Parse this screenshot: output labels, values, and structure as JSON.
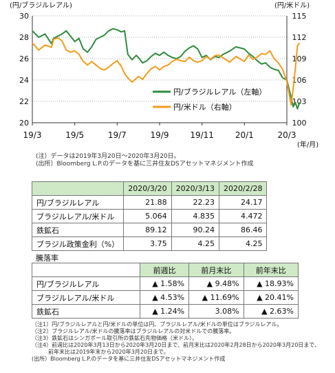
{
  "chart_data": {
    "type": "line",
    "left_axis_label": "(円/ブラジルレアル)",
    "right_axis_label": "(円/米ドル)",
    "x_unit_label": "(年/月)",
    "x_ticks": [
      "19/3",
      "19/5",
      "19/7",
      "19/9",
      "19/11",
      "20/1",
      "20/3"
    ],
    "y_left": {
      "min": 20,
      "max": 30,
      "ticks": [
        "20",
        "22",
        "24",
        "26",
        "28",
        "30"
      ]
    },
    "y_right": {
      "min": 100,
      "max": 115,
      "ticks": [
        "100",
        "103",
        "106",
        "109",
        "112",
        "115"
      ]
    },
    "grid": true,
    "legend_position": "right-center",
    "series": [
      {
        "name": "円/ブラジルレアル（左軸）",
        "axis": "left",
        "color": "#2e8b3e",
        "points": [
          [
            "19/3",
            28.6
          ],
          [
            "19/3.3",
            28.0
          ],
          [
            "19/3.6",
            28.3
          ],
          [
            "19/3.9",
            27.4
          ],
          [
            "19/4",
            27.9
          ],
          [
            "19/4.2",
            28.1
          ],
          [
            "19/4.4",
            28.3
          ],
          [
            "19/4.6",
            28.6
          ],
          [
            "19/4.8",
            28.1
          ],
          [
            "19/5",
            27.6
          ],
          [
            "19/5.2",
            27.9
          ],
          [
            "19/5.4",
            26.9
          ],
          [
            "19/5.6",
            26.6
          ],
          [
            "19/5.8",
            27.1
          ],
          [
            "19/6",
            27.8
          ],
          [
            "19/6.2",
            28.0
          ],
          [
            "19/6.4",
            28.2
          ],
          [
            "19/6.6",
            28.6
          ],
          [
            "19/6.8",
            28.8
          ],
          [
            "19/7",
            28.7
          ],
          [
            "19/7.2",
            28.5
          ],
          [
            "19/7.35",
            28.6
          ],
          [
            "19/7.5",
            26.4
          ],
          [
            "19/7.7",
            25.9
          ],
          [
            "19/7.9",
            26.3
          ],
          [
            "19/8",
            26.1
          ],
          [
            "19/8.2",
            25.6
          ],
          [
            "19/8.4",
            25.8
          ],
          [
            "19/8.6",
            26.2
          ],
          [
            "19/8.8",
            26.5
          ],
          [
            "19/9",
            26.3
          ],
          [
            "19/9.2",
            26.6
          ],
          [
            "19/9.4",
            26.3
          ],
          [
            "19/9.6",
            26.1
          ],
          [
            "19/9.8",
            26.0
          ],
          [
            "19/10",
            26.2
          ],
          [
            "19/10.2",
            26.7
          ],
          [
            "19/10.4",
            27.0
          ],
          [
            "19/10.6",
            27.2
          ],
          [
            "19/10.8",
            26.9
          ],
          [
            "19/11",
            26.1
          ],
          [
            "19/11.2",
            26.3
          ],
          [
            "19/11.4",
            25.9
          ],
          [
            "19/11.6",
            26.2
          ],
          [
            "19/11.8",
            26.1
          ],
          [
            "19/12",
            26.4
          ],
          [
            "19/12.3",
            26.7
          ],
          [
            "19/12.6",
            27.1
          ],
          [
            "20/1",
            26.9
          ],
          [
            "20/1.2",
            26.5
          ],
          [
            "20/1.4",
            26.2
          ],
          [
            "20/1.6",
            25.8
          ],
          [
            "20/1.8",
            25.5
          ],
          [
            "20/2",
            25.6
          ],
          [
            "20/2.2",
            25.2
          ],
          [
            "20/2.4",
            25.0
          ],
          [
            "20/2.6",
            24.9
          ],
          [
            "20/2.8",
            24.2
          ],
          [
            "20/3",
            24.0
          ],
          [
            "20/3.1",
            23.2
          ],
          [
            "20/3.2",
            22.4
          ],
          [
            "20/3.3",
            21.5
          ],
          [
            "20/3.4",
            21.9
          ],
          [
            "20/3.5",
            21.3
          ],
          [
            "20/3.6",
            21.9
          ]
        ]
      },
      {
        "name": "円/米ドル（右軸）",
        "axis": "right",
        "color": "#f39c1a",
        "points": [
          [
            "19/3",
            111.2
          ],
          [
            "19/3.3",
            110.2
          ],
          [
            "19/3.6",
            110.9
          ],
          [
            "19/3.9",
            110.6
          ],
          [
            "19/4",
            111.7
          ],
          [
            "19/4.2",
            111.9
          ],
          [
            "19/4.4",
            111.5
          ],
          [
            "19/4.6",
            110.2
          ],
          [
            "19/4.8",
            109.9
          ],
          [
            "19/5",
            110.1
          ],
          [
            "19/5.2",
            109.6
          ],
          [
            "19/5.4",
            108.6
          ],
          [
            "19/5.6",
            108.1
          ],
          [
            "19/5.8",
            108.6
          ],
          [
            "19/6",
            108.1
          ],
          [
            "19/6.2",
            107.6
          ],
          [
            "19/6.4",
            107.4
          ],
          [
            "19/6.6",
            107.8
          ],
          [
            "19/6.8",
            108.3
          ],
          [
            "19/7",
            108.7
          ],
          [
            "19/7.2",
            107.9
          ],
          [
            "19/7.35",
            106.9
          ],
          [
            "19/7.5",
            106.3
          ],
          [
            "19/7.7",
            105.7
          ],
          [
            "19/7.9",
            106.2
          ],
          [
            "19/8",
            106.5
          ],
          [
            "19/8.2",
            106.1
          ],
          [
            "19/8.4",
            106.9
          ],
          [
            "19/8.6",
            107.6
          ],
          [
            "19/8.8",
            107.9
          ],
          [
            "19/9",
            107.4
          ],
          [
            "19/9.2",
            107.9
          ],
          [
            "19/9.4",
            108.1
          ],
          [
            "19/9.6",
            108.6
          ],
          [
            "19/9.8",
            108.9
          ],
          [
            "19/10",
            108.7
          ],
          [
            "19/10.2",
            108.6
          ],
          [
            "19/10.4",
            109.2
          ],
          [
            "19/10.6",
            108.7
          ],
          [
            "19/10.8",
            108.5
          ],
          [
            "19/11",
            108.7
          ],
          [
            "19/11.2",
            109.3
          ],
          [
            "19/11.4",
            108.9
          ],
          [
            "19/11.6",
            109.4
          ],
          [
            "19/11.8",
            109.5
          ],
          [
            "19/12",
            109.1
          ],
          [
            "19/12.3",
            108.5
          ],
          [
            "19/12.6",
            109.3
          ],
          [
            "20/1",
            108.6
          ],
          [
            "20/1.2",
            109.5
          ],
          [
            "20/1.4",
            108.9
          ],
          [
            "20/1.6",
            109.2
          ],
          [
            "20/1.8",
            109.7
          ],
          [
            "20/2",
            109.6
          ],
          [
            "20/2.2",
            110.1
          ],
          [
            "20/2.4",
            109.0
          ],
          [
            "20/2.6",
            108.4
          ],
          [
            "20/2.8",
            107.5
          ],
          [
            "20/3",
            105.8
          ],
          [
            "20/3.1",
            104.2
          ],
          [
            "20/3.2",
            102.5
          ],
          [
            "20/3.3",
            104.9
          ],
          [
            "20/3.4",
            107.6
          ],
          [
            "20/3.5",
            110.8
          ],
          [
            "20/3.6",
            111.2
          ]
        ]
      }
    ]
  },
  "chart_notes": [
    "(注）データは2019年3月20日～2020年3月20日。",
    "(出所）Bloomberg L.P.のデータを基に三井住友DSアセットマネジメント作成"
  ],
  "table1": {
    "headers": [
      "",
      "2020/3/20",
      "2020/3/13",
      "2020/2/28"
    ],
    "rows": [
      [
        "円/ブラジルレアル",
        "21.88",
        "22.23",
        "24.17"
      ],
      [
        "ブラジルレアル/米ドル",
        "5.064",
        "4.835",
        "4.472"
      ],
      [
        "鉄鉱石",
        "89.12",
        "90.24",
        "86.46"
      ],
      [
        "ブラジル政策金利（%）",
        "3.75",
        "4.25",
        "4.25"
      ]
    ]
  },
  "table2_title": "騰落率",
  "table2": {
    "headers": [
      "",
      "前週比",
      "前月末比",
      "前年末比"
    ],
    "rows": [
      [
        "円/ブラジルレアル",
        "▲ 1.58%",
        "▲ 9.48%",
        "▲ 18.93%"
      ],
      [
        "ブラジルレアル/米ドル",
        "▲ 4.53%",
        "▲ 11.69%",
        "▲ 20.41%"
      ],
      [
        "鉄鉱石",
        "▲ 1.24%",
        "3.08%",
        "▲ 2.63%"
      ]
    ]
  },
  "bottom_notes": [
    "（注1）円/ブラジルレアルと円/米ドルの単位は円、ブラジルレアル/米ドルの単位はブラジルレアル。",
    "（注2）ブラジルレアル/米ドルの騰落率はブラジルレアルの対米ドルでの騰落率。",
    "（注3）鉄鉱石はシンガポール取引所の鉄鉱石先物価格（米ドル）。",
    "（注4）前週比は2020年3月13日から2020年3月20日まで、前月末比は2020年2月28日から2020年3月20日まで、",
    "　　　前年末比は2019年末から2020年3月20日まで。",
    "(出所）Bloomberg L.P.のデータを基に三井住友DSアセットマネジメント作成"
  ]
}
